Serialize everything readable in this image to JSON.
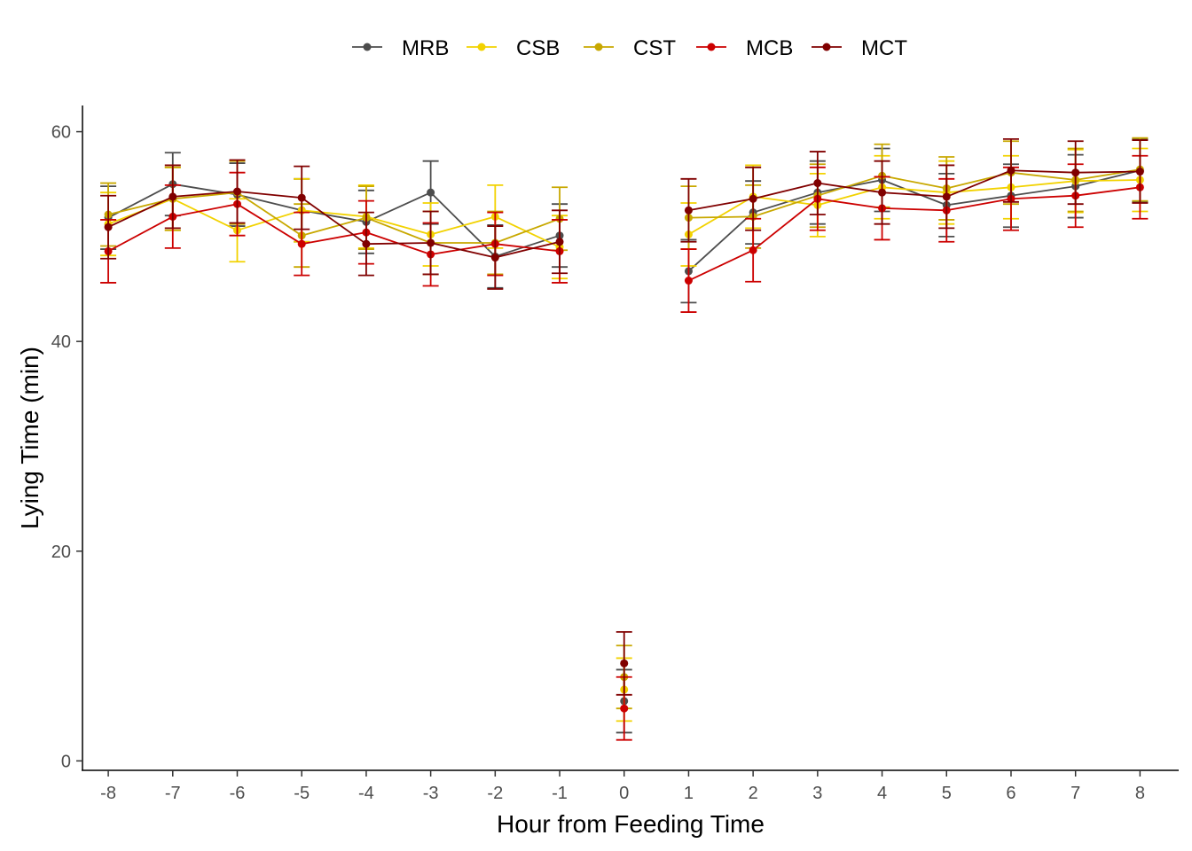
{
  "chart_data": {
    "type": "line",
    "xlabel": "Hour from Feeding Time",
    "ylabel": "Lying Time (min)",
    "xlim": [
      -8.4,
      8.6
    ],
    "ylim": [
      -0.9,
      62.5
    ],
    "x_ticks": [
      -8,
      -7,
      -6,
      -5,
      -4,
      -3,
      -2,
      -1,
      0,
      1,
      2,
      3,
      4,
      5,
      6,
      7,
      8
    ],
    "x_tick_labels": [
      "-8",
      "-7",
      "-6",
      "-5",
      "-4",
      "-3",
      "-2",
      "-1",
      "0",
      "1",
      "2",
      "3",
      "4",
      "5",
      "6",
      "7",
      "8"
    ],
    "y_ticks": [
      0,
      20,
      40,
      60
    ],
    "y_tick_labels": [
      "0",
      "20",
      "40",
      "60"
    ],
    "grid": false,
    "legend_position": "top",
    "line_break_at_x": 0,
    "series": [
      {
        "name": "MRB",
        "color": "#4d4d4d",
        "x": [
          -8,
          -7,
          -6,
          -5,
          -4,
          -3,
          -2,
          -1,
          0,
          1,
          2,
          3,
          4,
          5,
          6,
          7,
          8
        ],
        "y": [
          51.8,
          55.0,
          54.0,
          52.5,
          51.4,
          54.2,
          48.1,
          50.1,
          5.7,
          46.7,
          52.3,
          54.2,
          55.4,
          53.0,
          53.9,
          54.8,
          56.3
        ],
        "error": [
          3.0,
          3.0,
          3.0,
          3.0,
          3.0,
          3.0,
          3.0,
          3.0,
          3.0,
          3.0,
          3.0,
          3.0,
          3.0,
          3.0,
          3.0,
          3.0,
          3.0
        ]
      },
      {
        "name": "CSB",
        "color": "#f2d200",
        "x": [
          -8,
          -7,
          -6,
          -5,
          -4,
          -3,
          -2,
          -1,
          0,
          1,
          2,
          3,
          4,
          5,
          6,
          7,
          8
        ],
        "y": [
          51.2,
          53.6,
          50.6,
          52.5,
          51.9,
          50.2,
          51.9,
          49.0,
          6.8,
          50.2,
          53.8,
          53.0,
          54.7,
          54.2,
          54.7,
          55.3,
          55.4
        ],
        "error": [
          3.0,
          3.0,
          3.0,
          3.0,
          3.0,
          3.0,
          3.0,
          3.0,
          3.0,
          3.0,
          3.0,
          3.0,
          3.0,
          3.0,
          3.0,
          3.0,
          3.0
        ]
      },
      {
        "name": "CST",
        "color": "#c8a800",
        "x": [
          -8,
          -7,
          -6,
          -5,
          -4,
          -3,
          -2,
          -1,
          0,
          1,
          2,
          3,
          4,
          5,
          6,
          7,
          8
        ],
        "y": [
          52.1,
          53.6,
          54.2,
          50.1,
          51.8,
          49.4,
          49.4,
          51.7,
          8.0,
          51.8,
          51.9,
          53.9,
          55.8,
          54.6,
          56.1,
          55.4,
          56.4
        ],
        "error": [
          3.0,
          3.0,
          3.0,
          3.0,
          3.0,
          3.0,
          3.0,
          3.0,
          3.0,
          3.0,
          3.0,
          3.0,
          3.0,
          3.0,
          3.0,
          3.0,
          3.0
        ]
      },
      {
        "name": "MCB",
        "color": "#cc0000",
        "x": [
          -8,
          -7,
          -6,
          -5,
          -4,
          -3,
          -2,
          -1,
          0,
          1,
          2,
          3,
          4,
          5,
          6,
          7,
          8
        ],
        "y": [
          48.6,
          51.9,
          53.1,
          49.3,
          50.4,
          48.3,
          49.3,
          48.6,
          5.0,
          45.8,
          48.7,
          53.6,
          52.7,
          52.5,
          53.6,
          53.9,
          54.7
        ],
        "error": [
          3.0,
          3.0,
          3.0,
          3.0,
          3.0,
          3.0,
          3.0,
          3.0,
          3.0,
          3.0,
          3.0,
          3.0,
          3.0,
          3.0,
          3.0,
          3.0,
          3.0
        ]
      },
      {
        "name": "MCT",
        "color": "#800000",
        "x": [
          -8,
          -7,
          -6,
          -5,
          -4,
          -3,
          -2,
          -1,
          0,
          1,
          2,
          3,
          4,
          5,
          6,
          7,
          8
        ],
        "y": [
          50.9,
          53.8,
          54.3,
          53.7,
          49.3,
          49.4,
          48.0,
          49.5,
          9.3,
          52.5,
          53.6,
          55.1,
          54.2,
          53.8,
          56.3,
          56.1,
          56.2
        ],
        "error": [
          3.0,
          3.0,
          3.0,
          3.0,
          3.0,
          3.0,
          3.0,
          3.0,
          3.0,
          3.0,
          3.0,
          3.0,
          3.0,
          3.0,
          3.0,
          3.0,
          3.0
        ]
      }
    ]
  }
}
